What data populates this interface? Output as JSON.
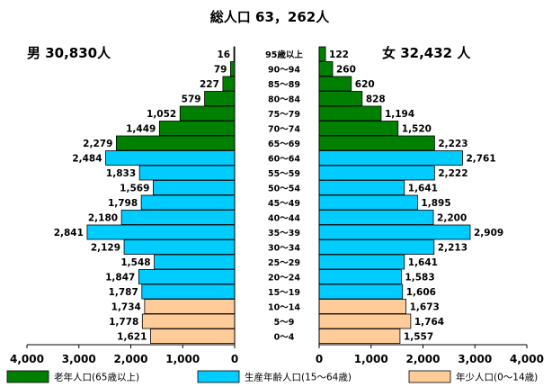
{
  "chart_data": {
    "type": "bar",
    "orientation": "horizontal-pyramid",
    "title": "総人口 63，262人",
    "male_label": "男  30,830人",
    "female_label": "女  32,432 人",
    "categories": [
      "95歳以上",
      "90～94",
      "85～89",
      "80～84",
      "75～79",
      "70～74",
      "65～69",
      "60～64",
      "55～59",
      "50～54",
      "45～49",
      "40～44",
      "35～39",
      "30～34",
      "25～29",
      "20～24",
      "15～19",
      "10～14",
      "5～9",
      "0～4"
    ],
    "male_label_values": [
      "16",
      "79",
      "227",
      "579",
      "1,052",
      "1,449",
      "2,279",
      "2,484",
      "1,833",
      "1,569",
      "1,798",
      "2,180",
      "2,841",
      "2,129",
      "1,548",
      "1,847",
      "1,787",
      "1,734",
      "1,778",
      "1,621"
    ],
    "female_label_values": [
      "122",
      "260",
      "620",
      "828",
      "1,194",
      "1,520",
      "2,223",
      "2,761",
      "2,222",
      "1,641",
      "1,895",
      "2,200",
      "2,909",
      "2,213",
      "1,641",
      "1,583",
      "1,606",
      "1,673",
      "1,764",
      "1,557"
    ],
    "series": [
      {
        "values": [
          16,
          79,
          227,
          579,
          1052,
          1449,
          2279,
          2484,
          1833,
          1569,
          1798,
          2180,
          2841,
          2129,
          1548,
          1847,
          1787,
          1734,
          1778,
          1621
        ]
      },
      {
        "values": [
          122,
          260,
          620,
          828,
          1194,
          1520,
          2223,
          2761,
          2222,
          1641,
          1895,
          2200,
          2909,
          2213,
          1641,
          1583,
          1606,
          1673,
          1764,
          1557
        ]
      }
    ],
    "groups": [
      {
        "label": "老年人口(65歳以上)",
        "color": "#008000",
        "rows": [
          0,
          1,
          2,
          3,
          4,
          5,
          6
        ]
      },
      {
        "label": "生産年齢人口(15～64歳)",
        "color": "#00ccff",
        "rows": [
          7,
          8,
          9,
          10,
          11,
          12,
          13,
          14,
          15,
          16
        ]
      },
      {
        "label": "年少人口(0～14歳)",
        "color": "#ffcc99",
        "rows": [
          17,
          18,
          19
        ]
      }
    ],
    "xlim": [
      0,
      4000
    ],
    "male_ticks": [
      "4,000",
      "3,000",
      "2,000",
      "1,000",
      "0"
    ],
    "female_ticks": [
      "0",
      "1,000",
      "2,000",
      "3,000",
      "4,000"
    ],
    "grid": false,
    "legend": "bottom"
  }
}
